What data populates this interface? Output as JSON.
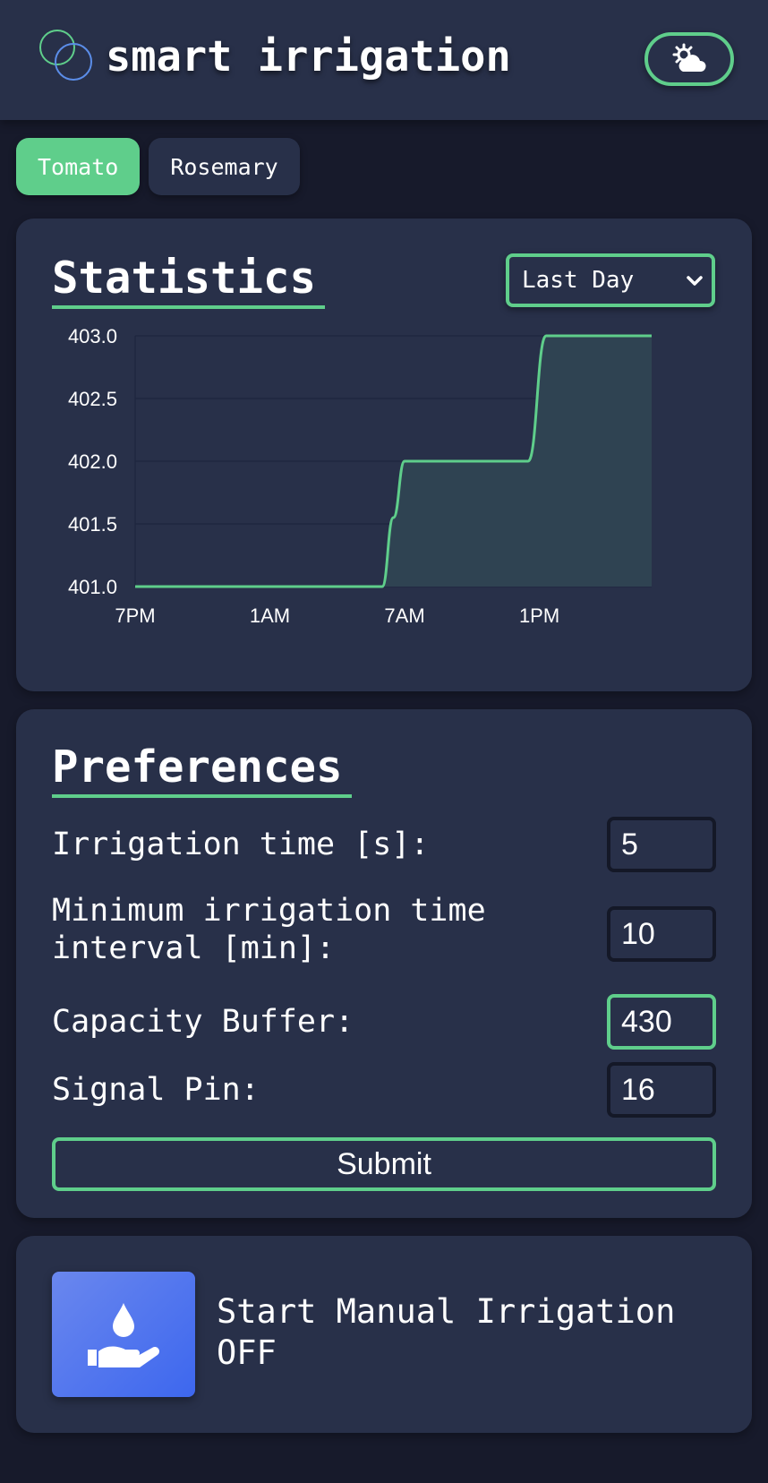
{
  "app": {
    "title": "smart irrigation"
  },
  "header": {
    "weather_icon": "sun-cloud-icon",
    "accent_color": "#5fce8b",
    "logo_colors": [
      "#5fce8b",
      "#5b8de8"
    ]
  },
  "plants": {
    "tabs": [
      {
        "label": "Tomato",
        "active": true
      },
      {
        "label": "Rosemary",
        "active": false
      }
    ]
  },
  "statistics": {
    "title": "Statistics",
    "range_selected": "Last Day"
  },
  "chart_data": {
    "type": "area",
    "x_tick_labels": [
      "7PM",
      "1AM",
      "7AM",
      "1PM"
    ],
    "x_ticks": [
      19,
      25,
      31,
      37
    ],
    "y_tick_labels": [
      "401.0",
      "401.5",
      "402.0",
      "402.5",
      "403.0"
    ],
    "y_ticks": [
      401.0,
      401.5,
      402.0,
      402.5,
      403.0
    ],
    "ylim": [
      401.0,
      403.0
    ],
    "xlim": [
      19,
      42
    ],
    "grid": true,
    "line_color": "#5fce8b",
    "fill_color": "#2f4352",
    "series": [
      {
        "x": [
          19,
          30,
          30.5,
          31,
          32,
          36.5,
          37.3,
          42
        ],
        "values": [
          401.0,
          401.0,
          401.55,
          402.0,
          402.0,
          402.0,
          403.0,
          403.0
        ]
      }
    ]
  },
  "preferences": {
    "title": "Preferences",
    "fields": [
      {
        "label": "Irrigation time [s]:",
        "value": "5"
      },
      {
        "label": "Minimum irrigation time interval [min]:",
        "value": "10"
      },
      {
        "label": "Capacity Buffer:",
        "value": "430"
      },
      {
        "label": "Signal Pin:",
        "value": "16"
      }
    ],
    "submit_label": "Submit"
  },
  "manual": {
    "icon": "water-drop-hand-icon",
    "label": "Start Manual Irrigation",
    "state": "OFF"
  }
}
